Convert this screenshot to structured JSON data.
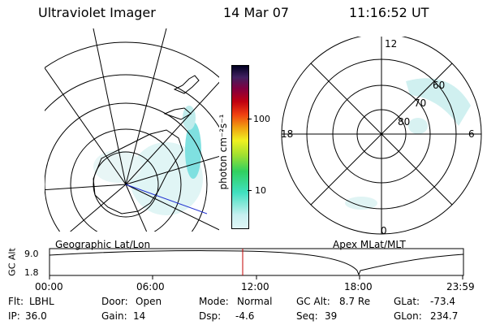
{
  "header": {
    "title": "Ultraviolet Imager",
    "date": "14 Mar 07",
    "time": "11:16:52 UT"
  },
  "colorbar": {
    "label": "photon cm⁻²s⁻¹",
    "ticks": [
      "100",
      "10"
    ],
    "colors": [
      "#c8f0f0",
      "#40e0c0",
      "#30d060",
      "#a0e030",
      "#f0f020",
      "#f0a010",
      "#f04010",
      "#c00010",
      "#800040",
      "#402060",
      "#000020"
    ]
  },
  "left_map": {
    "caption": "Geographic Lat/Lon"
  },
  "right_map": {
    "caption": "Apex MLat/MLT",
    "mlt_labels": [
      "12",
      "18",
      "6",
      "0"
    ],
    "lat_labels": [
      "60",
      "70",
      "80"
    ]
  },
  "timeline": {
    "ylabel": "GC Alt",
    "y_ticks": [
      "9.0",
      "1.8"
    ],
    "x_ticks": [
      "00:00",
      "06:00",
      "12:00",
      "18:00",
      "23:59"
    ],
    "marker_color": "#c00000"
  },
  "status": {
    "row1": [
      {
        "label": "Flt:",
        "value": "LBHL"
      },
      {
        "label": "Door:",
        "value": "Open"
      },
      {
        "label": "Mode:",
        "value": "Normal"
      },
      {
        "label": "GC Alt:",
        "value": "8.7 Re"
      },
      {
        "label": "GLat:",
        "value": "-73.4"
      }
    ],
    "row2": [
      {
        "label": "IP:",
        "value": "36.0"
      },
      {
        "label": "Gain:",
        "value": "14"
      },
      {
        "label": "Dsp:",
        "value": "-4.6"
      },
      {
        "label": "Seq:",
        "value": "39"
      },
      {
        "label": "GLon:",
        "value": "234.7"
      }
    ]
  }
}
